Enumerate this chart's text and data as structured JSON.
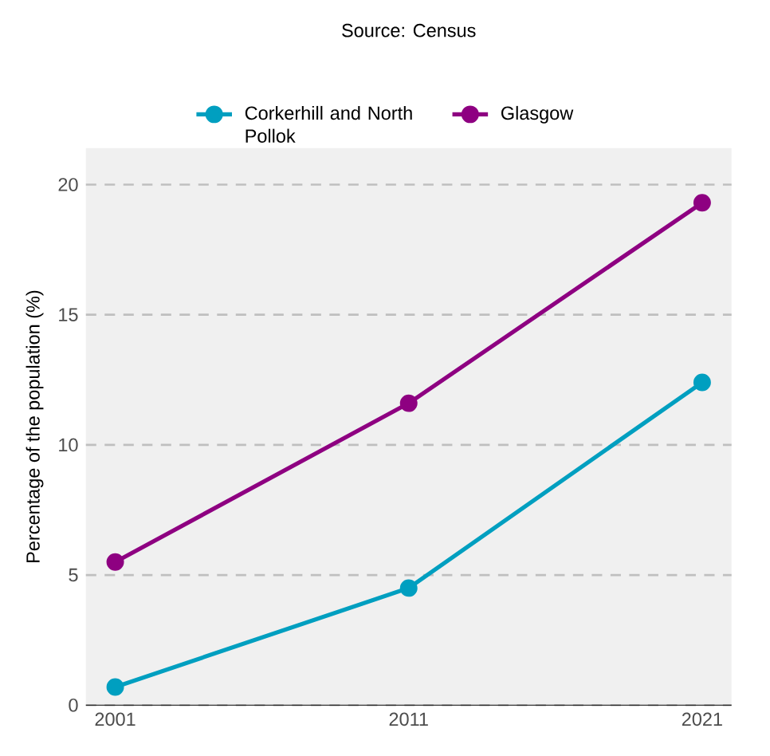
{
  "chart_data": {
    "type": "line",
    "legend_title": "Source: Census",
    "ylabel": "Percentage of the population (%)",
    "x": [
      2001,
      2011,
      2021
    ],
    "series": [
      {
        "name": "Corkerhill and North Pollok",
        "color": "#009fc0",
        "values": [
          0.7,
          4.5,
          12.4
        ]
      },
      {
        "name": "Glasgow",
        "color": "#8e0081",
        "values": [
          5.5,
          11.6,
          19.3
        ]
      }
    ],
    "xlim": [
      2000,
      2022
    ],
    "ylim": [
      0,
      21.4
    ],
    "xticks": [
      2001,
      2011,
      2021
    ],
    "yticks": [
      0,
      5,
      10,
      15,
      20
    ],
    "grid": "y",
    "legend": "top",
    "marker": "circle",
    "line_style": "solid"
  }
}
